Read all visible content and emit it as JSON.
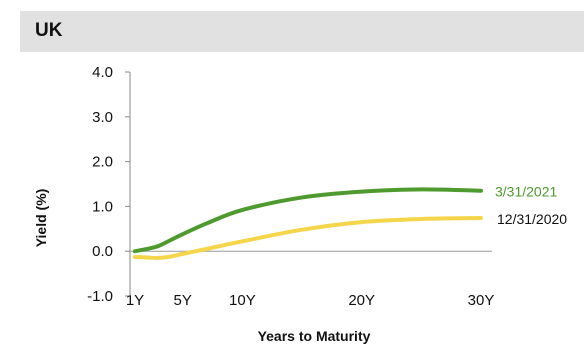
{
  "header": {
    "title": "UK"
  },
  "chart_data": {
    "type": "line",
    "title": "",
    "xlabel": "Years to Maturity",
    "ylabel": "Yield (%)",
    "ylim": [
      -1.0,
      4.0
    ],
    "yticks": [
      -1.0,
      0.0,
      1.0,
      2.0,
      3.0,
      4.0
    ],
    "ytick_labels": [
      "-1.0",
      "0.0",
      "1.0",
      "2.0",
      "3.0",
      "4.0"
    ],
    "xlim": [
      1,
      30
    ],
    "xticks": [
      1,
      5,
      10,
      20,
      30
    ],
    "xtick_labels": [
      "1Y",
      "5Y",
      "10Y",
      "20Y",
      "30Y"
    ],
    "grid": false,
    "legend": "end-of-line labels",
    "series": [
      {
        "name": "3/31/2021",
        "color": "#4e9a2e",
        "x": [
          1,
          2,
          3,
          4,
          5,
          7,
          10,
          15,
          20,
          25,
          30
        ],
        "y": [
          0.0,
          0.05,
          0.12,
          0.25,
          0.38,
          0.62,
          0.92,
          1.2,
          1.33,
          1.38,
          1.35
        ]
      },
      {
        "name": "12/31/2020",
        "color": "#f5d54a",
        "x": [
          1,
          2,
          3,
          4,
          5,
          7,
          10,
          15,
          20,
          25,
          30
        ],
        "y": [
          -0.13,
          -0.14,
          -0.15,
          -0.12,
          -0.06,
          0.05,
          0.22,
          0.48,
          0.65,
          0.72,
          0.74
        ]
      }
    ]
  }
}
